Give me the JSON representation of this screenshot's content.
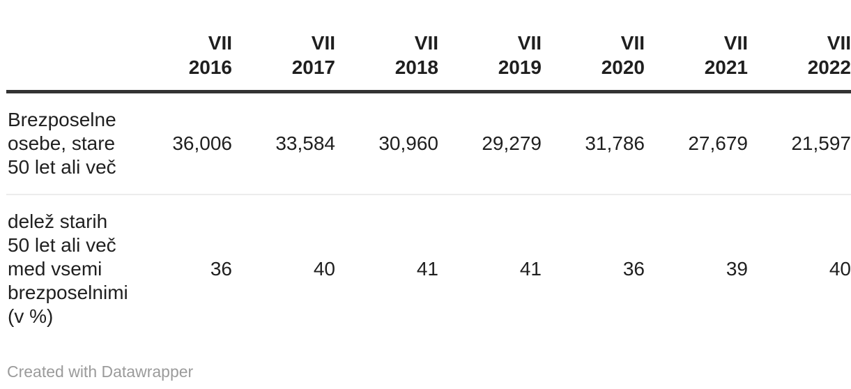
{
  "colors": {
    "text": "#1f1f1f",
    "header_rule": "#333333",
    "row_divider": "#ececec",
    "attribution": "#9b9b9b",
    "background": "#ffffff"
  },
  "table": {
    "column_headers": [
      "VII\n2016",
      "VII\n2017",
      "VII\n2018",
      "VII\n2019",
      "VII\n2020",
      "VII\n2021",
      "VII\n2022"
    ],
    "rows": [
      {
        "label": "Brezposelne\nosebe, stare\n50 let ali več",
        "values": [
          "36,006",
          "33,584",
          "30,960",
          "29,279",
          "31,786",
          "27,679",
          "21,597"
        ]
      },
      {
        "label": "delež starih\n50 let ali več\nmed vsemi\nbrezposelnimi\n(v %)",
        "values": [
          "36",
          "40",
          "41",
          "41",
          "36",
          "39",
          "40"
        ]
      }
    ]
  },
  "footer": {
    "attribution": "Created with Datawrapper"
  },
  "chart_data": {
    "type": "table",
    "categories": [
      "VII 2016",
      "VII 2017",
      "VII 2018",
      "VII 2019",
      "VII 2020",
      "VII 2021",
      "VII 2022"
    ],
    "series": [
      {
        "name": "Brezposelne osebe, stare 50 let ali več",
        "values": [
          36006,
          33584,
          30960,
          29279,
          31786,
          27679,
          21597
        ]
      },
      {
        "name": "delež starih 50 let ali več med vsemi brezposelnimi (v %)",
        "values": [
          36,
          40,
          41,
          41,
          36,
          39,
          40
        ]
      }
    ],
    "title": "",
    "attribution": "Created with Datawrapper",
    "layout_hints": {
      "header_style": "bold, right-aligned, two-line (month over year)",
      "last_column_clipped": true,
      "grid": "thick rule under header, light divider between rows"
    }
  }
}
